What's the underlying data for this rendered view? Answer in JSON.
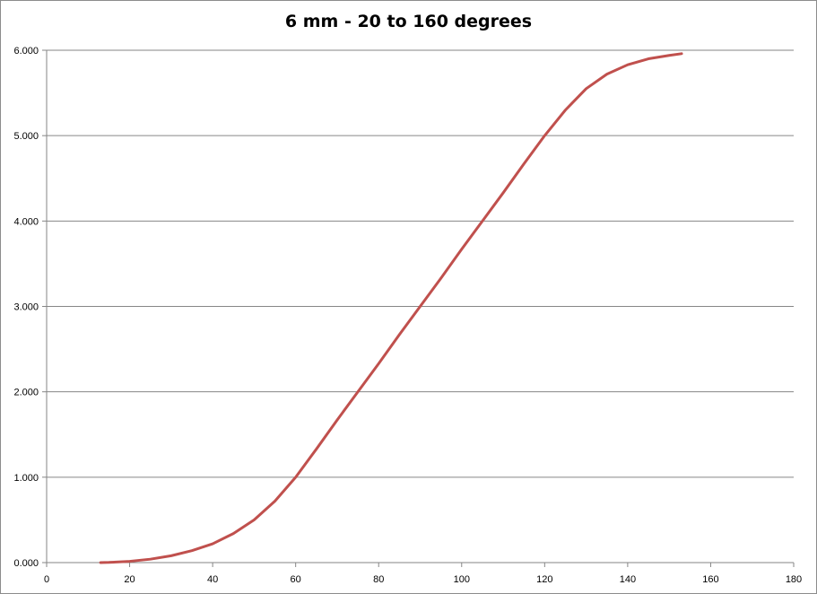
{
  "chart_data": {
    "type": "line",
    "title": "6 mm - 20 to 160 degrees",
    "xlabel": "",
    "ylabel": "",
    "xlim": [
      0,
      180
    ],
    "ylim": [
      0,
      6
    ],
    "x_ticks": [
      0,
      20,
      40,
      60,
      80,
      100,
      120,
      140,
      160,
      180
    ],
    "x_tick_labels": [
      "0",
      "20",
      "40",
      "60",
      "80",
      "100",
      "120",
      "140",
      "160",
      "180"
    ],
    "y_ticks": [
      0,
      1,
      2,
      3,
      4,
      5,
      6
    ],
    "y_tick_labels": [
      "0.000",
      "1.000",
      "2.000",
      "3.000",
      "4.000",
      "5.000",
      "6.000"
    ],
    "grid": "horizontal",
    "legend": "none",
    "series": [
      {
        "color": "#c0504d",
        "x": [
          13,
          15,
          20,
          25,
          30,
          35,
          40,
          45,
          50,
          55,
          60,
          65,
          70,
          75,
          80,
          85,
          90,
          95,
          100,
          105,
          110,
          115,
          120,
          125,
          130,
          135,
          140,
          145,
          150,
          153
        ],
        "y": [
          0.0,
          0.002,
          0.015,
          0.04,
          0.08,
          0.14,
          0.22,
          0.34,
          0.5,
          0.72,
          1.0,
          1.33,
          1.67,
          2.0,
          2.33,
          2.67,
          3.0,
          3.33,
          3.67,
          4.0,
          4.33,
          4.67,
          5.0,
          5.3,
          5.55,
          5.72,
          5.83,
          5.9,
          5.94,
          5.96
        ]
      }
    ]
  }
}
